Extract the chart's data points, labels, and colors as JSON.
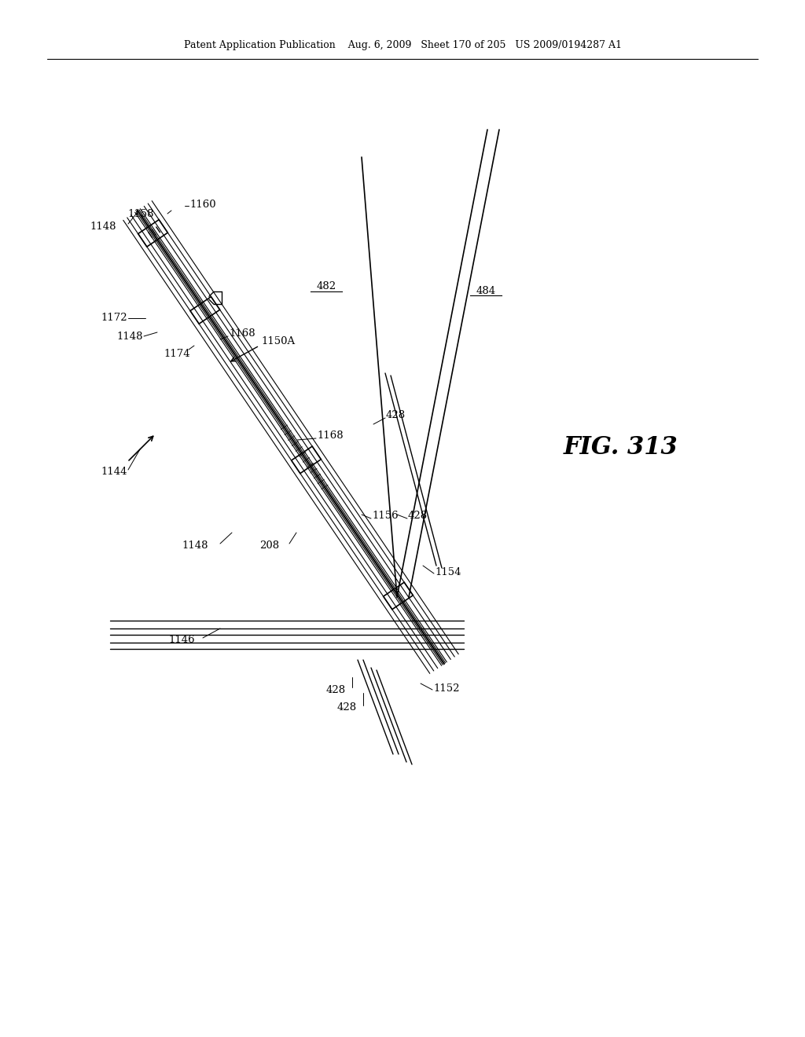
{
  "bg_color": "#ffffff",
  "title_text": "Patent Application Publication    Aug. 6, 2009   Sheet 170 of 205   US 2009/0194287 A1",
  "fig_label": "FIG. 313",
  "line_color": "#000000"
}
